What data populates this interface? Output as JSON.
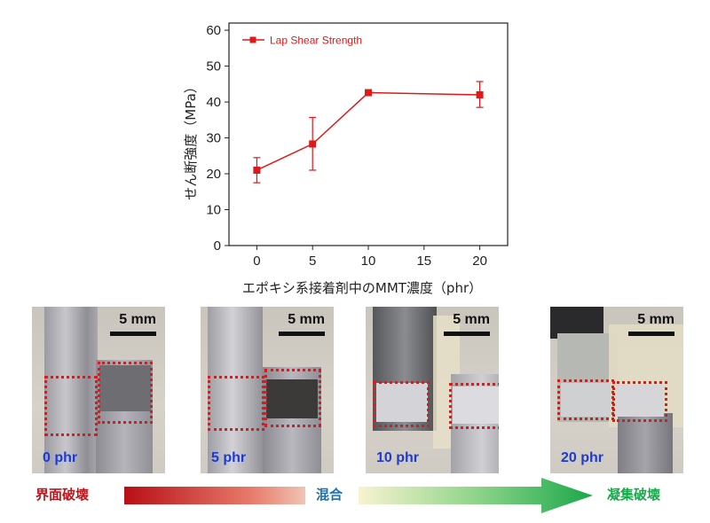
{
  "chart_data": {
    "type": "line",
    "x": [
      0,
      5,
      10,
      20
    ],
    "series": [
      {
        "name": "Lap Shear Strength",
        "values": [
          21,
          28.3,
          42.6,
          42
        ],
        "error_low": [
          17.5,
          21,
          42,
          38.5
        ],
        "error_high": [
          24.5,
          35.7,
          43.2,
          45.7
        ],
        "color": "#e01818",
        "marker": "square"
      }
    ],
    "xticks": [
      0,
      5,
      10,
      15,
      20
    ],
    "yticks": [
      0,
      10,
      20,
      30,
      40,
      50,
      60
    ],
    "xlim": [
      -2.5,
      22.5
    ],
    "ylim": [
      0,
      62
    ],
    "xlabel": "エポキシ系接着剤中のMMT濃度（phr）",
    "ylabel": "せん断強度（MPa）",
    "legend_position": "top-left"
  },
  "photos": [
    {
      "concentration": "0 phr",
      "scale": "5 mm"
    },
    {
      "concentration": "5 phr",
      "scale": "5 mm"
    },
    {
      "concentration": "10 phr",
      "scale": "5 mm"
    },
    {
      "concentration": "20 phr",
      "scale": "5 mm"
    }
  ],
  "failure_scale": {
    "left": "界面破壊",
    "middle": "混合",
    "right": "凝集破壊",
    "colors": {
      "left": "#c0141c",
      "middle": "#1e6fb4",
      "right": "#1aa84a"
    }
  }
}
